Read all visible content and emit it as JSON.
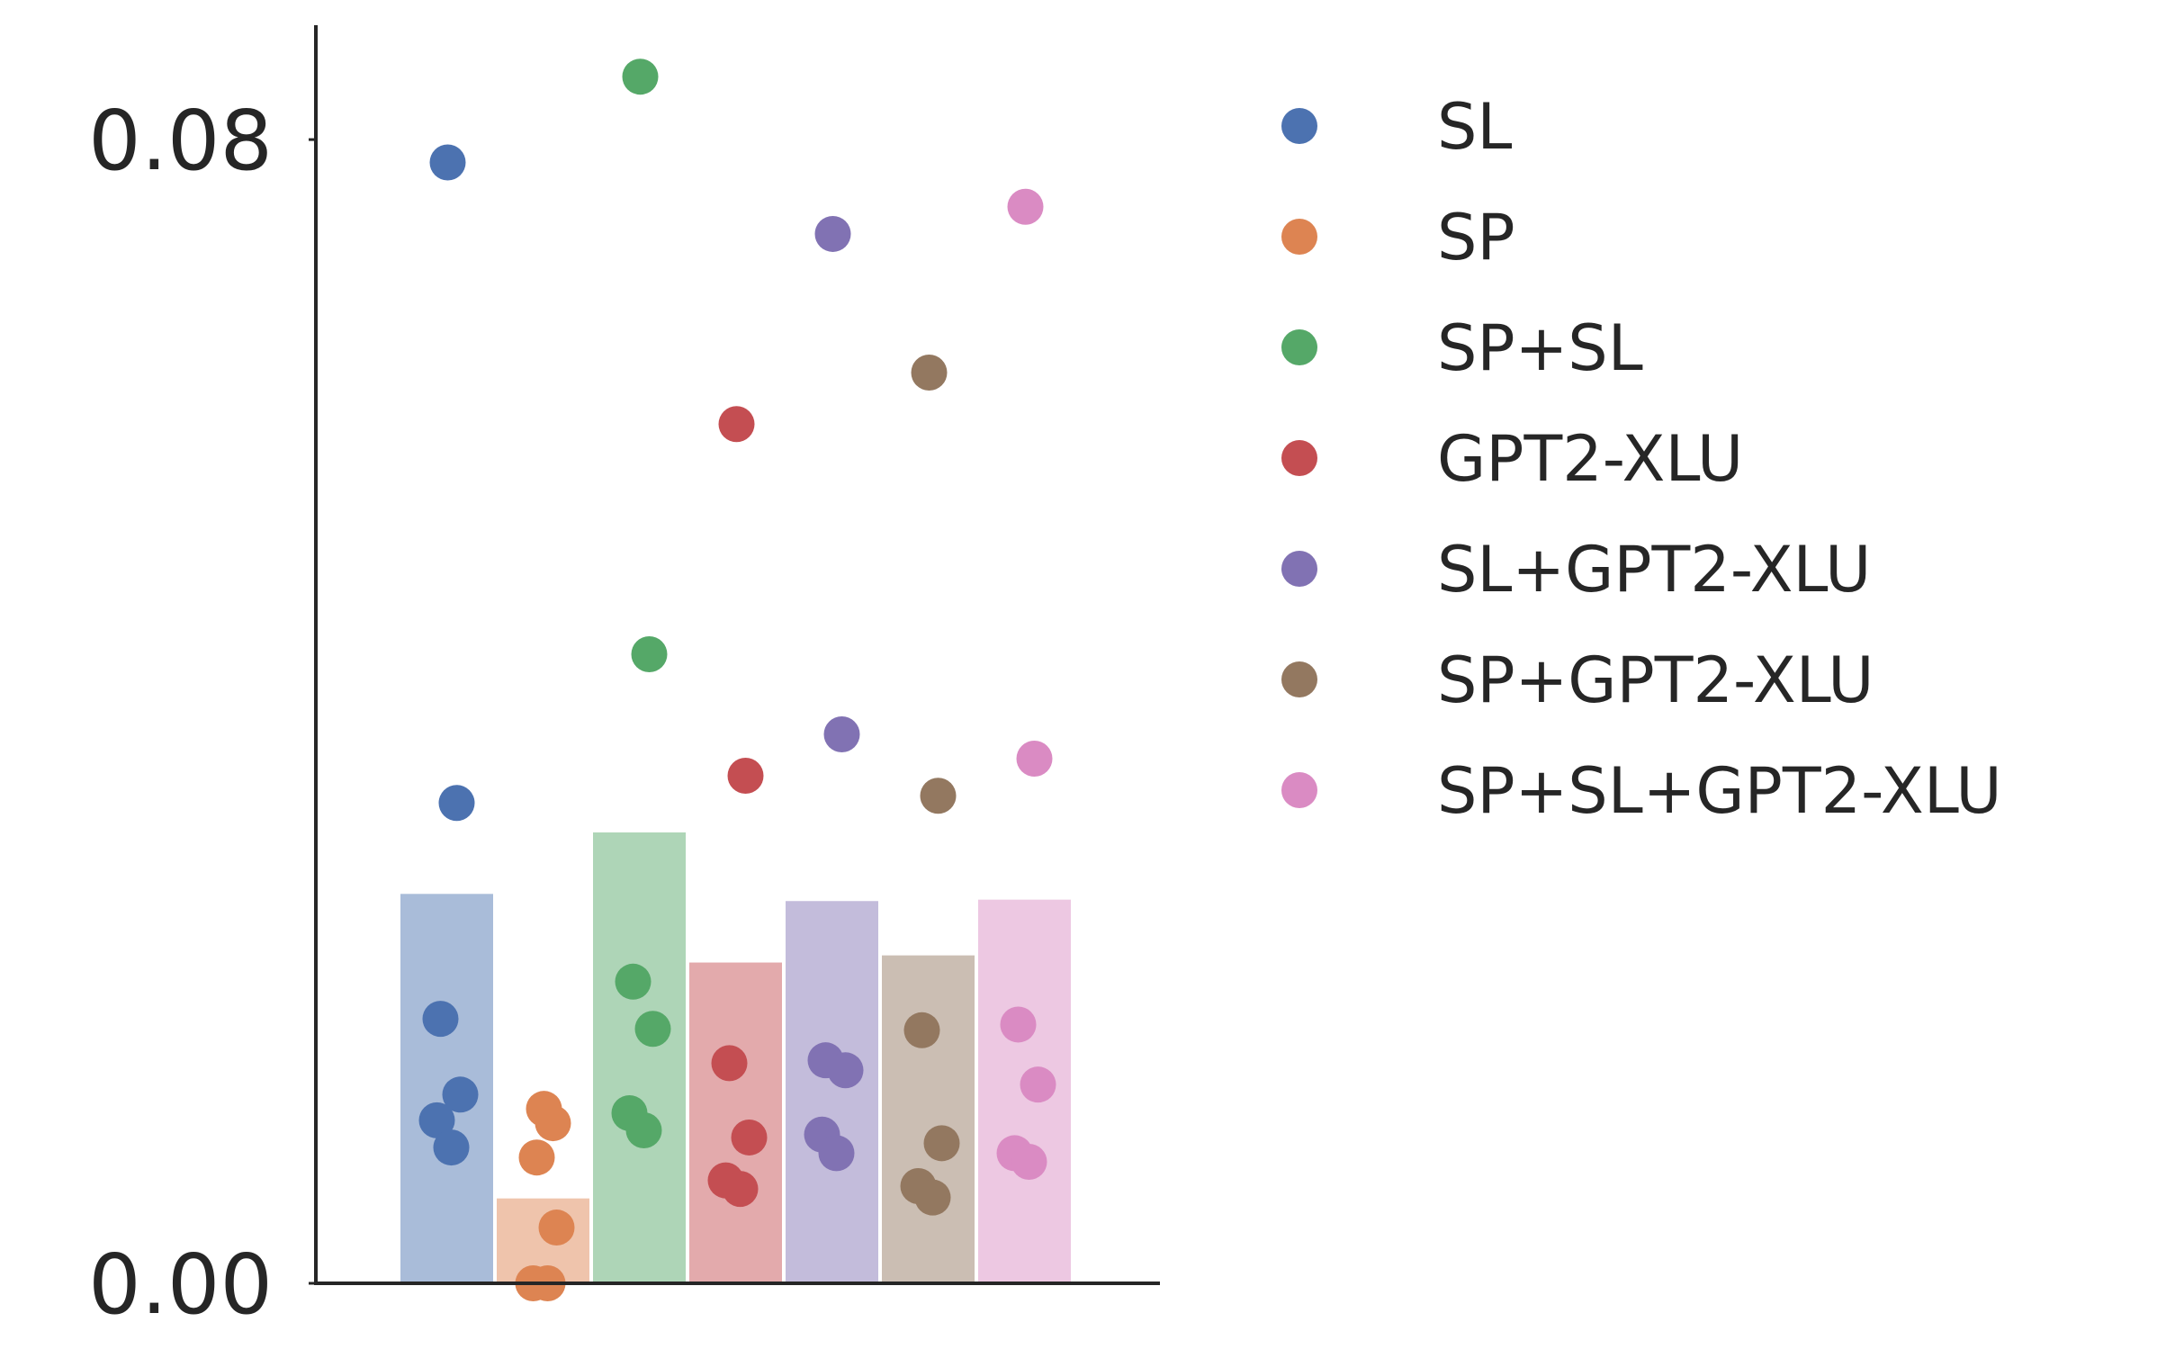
{
  "chart_data": {
    "type": "bar",
    "title": "",
    "xlabel": "",
    "ylabel": "",
    "ylim": [
      0,
      0.088
    ],
    "yticks": [
      0.0,
      0.08
    ],
    "ytick_labels": [
      "0.00",
      "0.08"
    ],
    "grid": false,
    "legend": {
      "placement": "right",
      "marker": "circle"
    },
    "categories": [
      "SL",
      "SP",
      "SP+SL",
      "GPT2-XLU",
      "SL+GPT2-XLU",
      "SP+GPT2-XLU",
      "SP+SL+GPT2-XLU"
    ],
    "series": [
      {
        "name": "SL",
        "color": "#4c72b0",
        "bar_value": 0.0273,
        "points": [
          0.0784,
          0.0336,
          0.0185,
          0.0132,
          0.0114,
          0.0095
        ]
      },
      {
        "name": "SP",
        "color": "#dd8452",
        "bar_value": 0.006,
        "points": [
          0.0122,
          0.0112,
          0.0088,
          0.0039,
          0.0,
          0.0
        ]
      },
      {
        "name": "SP+SL",
        "color": "#55a868",
        "bar_value": 0.0316,
        "points": [
          0.0844,
          0.044,
          0.0211,
          0.0178,
          0.0119,
          0.0107
        ]
      },
      {
        "name": "GPT2-XLU",
        "color": "#c44e52",
        "bar_value": 0.0225,
        "points": [
          0.0601,
          0.0355,
          0.0154,
          0.0102,
          0.0072,
          0.0066
        ]
      },
      {
        "name": "SL+GPT2-XLU",
        "color": "#8172b3",
        "bar_value": 0.0268,
        "points": [
          0.0734,
          0.0384,
          0.0156,
          0.0149,
          0.0104,
          0.0091
        ]
      },
      {
        "name": "SP+GPT2-XLU",
        "color": "#937860",
        "bar_value": 0.023,
        "points": [
          0.0637,
          0.0341,
          0.0177,
          0.0098,
          0.0068,
          0.006
        ]
      },
      {
        "name": "SP+SL+GPT2-XLU",
        "color": "#da8bc3",
        "bar_value": 0.0269,
        "points": [
          0.0753,
          0.0367,
          0.0181,
          0.0139,
          0.0091,
          0.0085
        ]
      }
    ]
  }
}
